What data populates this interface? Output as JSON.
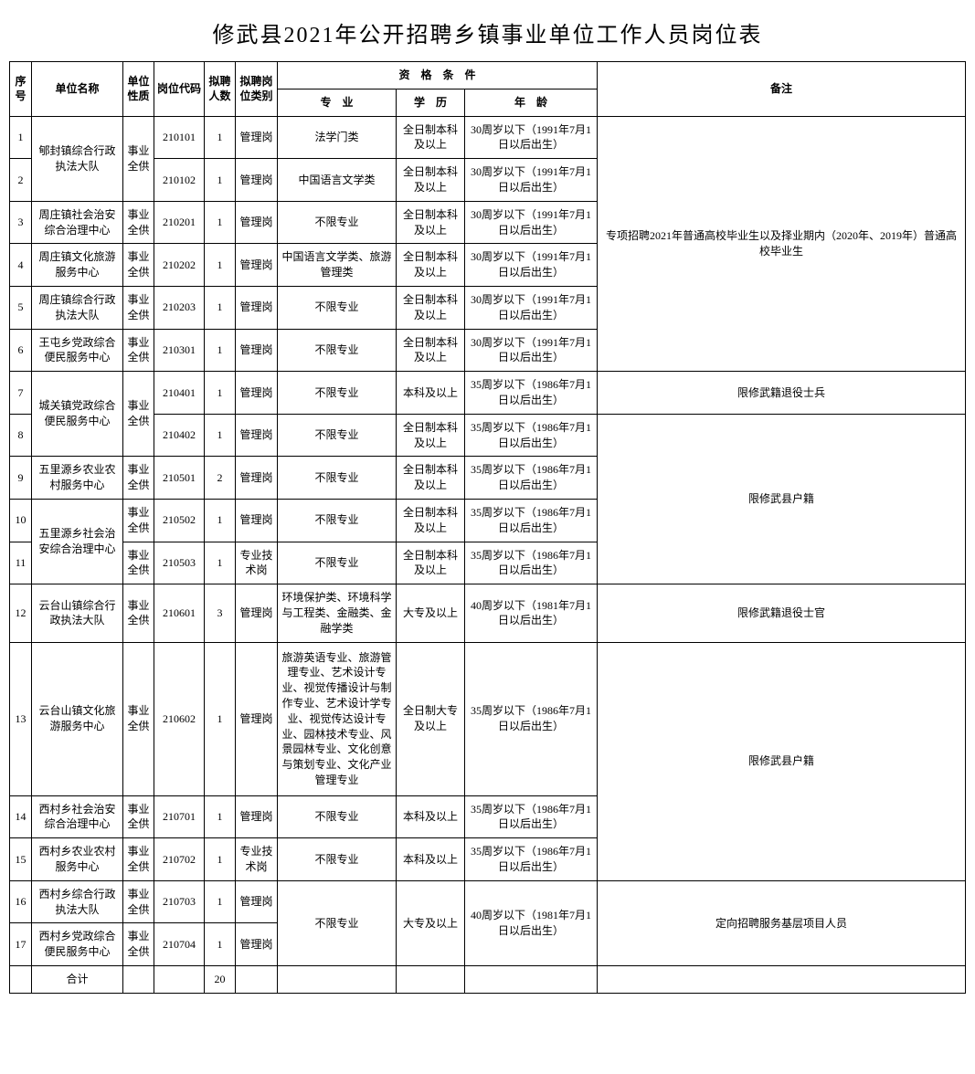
{
  "title": "修武县2021年公开招聘乡镇事业单位工作人员岗位表",
  "headers": {
    "seq": "序号",
    "unit": "单位名称",
    "nature": "单位性质",
    "code": "岗位代码",
    "num": "拟聘人数",
    "cat": "拟聘岗位类别",
    "qual": "资　格　条　件",
    "major": "专　业",
    "edu": "学　历",
    "age": "年　龄",
    "note": "备注"
  },
  "nature_text": "事业全供",
  "edu_full_bk": "全日制本科及以上",
  "edu_bk": "本科及以上",
  "edu_dz": "大专及以上",
  "edu_full_dz": "全日制大专及以上",
  "age30": "30周岁以下（1991年7月1日以后出生）",
  "age35": "35周岁以下（1986年7月1日以后出生）",
  "age40": "40周岁以下（1981年7月1日以后出生）",
  "cat_mgmt": "管理岗",
  "cat_tech": "专业技术岗",
  "major_nolimit": "不限专业",
  "note_group1": "专项招聘2021年普通高校毕业生以及择业期内（2020年、2019年）普通高校毕业生",
  "note_vet_sb": "限修武籍退役士兵",
  "note_huji": "限修武县户籍",
  "note_vet_sg": "限修武籍退役士官",
  "note_dir": "定向招聘服务基层项目人员",
  "total_label": "合计",
  "total_num": "20",
  "rows": {
    "r1": {
      "seq": "1",
      "unit": "郇封镇综合行政执法大队",
      "code": "210101",
      "num": "1",
      "cat": "管理岗",
      "major": "法学门类"
    },
    "r2": {
      "seq": "2",
      "code": "210102",
      "num": "1",
      "cat": "管理岗",
      "major": "中国语言文学类"
    },
    "r3": {
      "seq": "3",
      "unit": "周庄镇社会治安综合治理中心",
      "code": "210201",
      "num": "1",
      "cat": "管理岗"
    },
    "r4": {
      "seq": "4",
      "unit": "周庄镇文化旅游服务中心",
      "code": "210202",
      "num": "1",
      "cat": "管理岗",
      "major": "中国语言文学类、旅游管理类"
    },
    "r5": {
      "seq": "5",
      "unit": "周庄镇综合行政执法大队",
      "code": "210203",
      "num": "1",
      "cat": "管理岗"
    },
    "r6": {
      "seq": "6",
      "unit": "王屯乡党政综合便民服务中心",
      "code": "210301",
      "num": "1",
      "cat": "管理岗"
    },
    "r7": {
      "seq": "7",
      "unit": "城关镇党政综合便民服务中心",
      "code": "210401",
      "num": "1",
      "cat": "管理岗"
    },
    "r8": {
      "seq": "8",
      "code": "210402",
      "num": "1",
      "cat": "管理岗"
    },
    "r9": {
      "seq": "9",
      "unit": "五里源乡农业农村服务中心",
      "code": "210501",
      "num": "2",
      "cat": "管理岗"
    },
    "r10": {
      "seq": "10",
      "unit": "五里源乡社会治安综合治理中心",
      "code": "210502",
      "num": "1",
      "cat": "管理岗"
    },
    "r11": {
      "seq": "11",
      "code": "210503",
      "num": "1",
      "cat": "专业技术岗"
    },
    "r12": {
      "seq": "12",
      "unit": "云台山镇综合行政执法大队",
      "code": "210601",
      "num": "3",
      "cat": "管理岗",
      "major": "环境保护类、环境科学与工程类、金融类、金融学类"
    },
    "r13": {
      "seq": "13",
      "unit": "云台山镇文化旅游服务中心",
      "code": "210602",
      "num": "1",
      "cat": "管理岗",
      "major": "旅游英语专业、旅游管理专业、艺术设计专业、视觉传播设计与制作专业、艺术设计学专业、视觉传达设计专业、园林技术专业、风景园林专业、文化创意与策划专业、文化产业管理专业"
    },
    "r14": {
      "seq": "14",
      "unit": "西村乡社会治安综合治理中心",
      "code": "210701",
      "num": "1",
      "cat": "管理岗"
    },
    "r15": {
      "seq": "15",
      "unit": "西村乡农业农村服务中心",
      "code": "210702",
      "num": "1",
      "cat": "专业技术岗"
    },
    "r16": {
      "seq": "16",
      "unit": "西村乡综合行政执法大队",
      "code": "210703",
      "num": "1",
      "cat": "管理岗"
    },
    "r17": {
      "seq": "17",
      "unit": "西村乡党政综合便民服务中心",
      "code": "210704",
      "num": "1",
      "cat": "管理岗"
    }
  }
}
